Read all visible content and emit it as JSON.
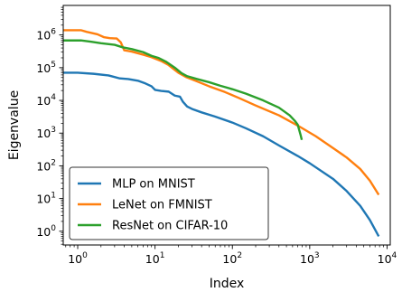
{
  "chart_data": {
    "type": "line",
    "title": "",
    "xlabel": "Index",
    "ylabel": "Eigenvalue",
    "xscale": "log",
    "yscale": "log",
    "xlim": [
      0.65,
      11000
    ],
    "ylim": [
      0.38,
      8000000
    ],
    "grid": false,
    "legend_position": "lower-left",
    "x_ticks": [
      {
        "value": 1,
        "label": "10",
        "exp": "0"
      },
      {
        "value": 10,
        "label": "10",
        "exp": "1"
      },
      {
        "value": 100,
        "label": "10",
        "exp": "2"
      },
      {
        "value": 1000,
        "label": "10",
        "exp": "3"
      },
      {
        "value": 10000,
        "label": "10",
        "exp": "4"
      }
    ],
    "y_ticks": [
      {
        "value": 1,
        "label": "10",
        "exp": "0"
      },
      {
        "value": 10,
        "label": "10",
        "exp": "1"
      },
      {
        "value": 100,
        "label": "10",
        "exp": "2"
      },
      {
        "value": 1000,
        "label": "10",
        "exp": "3"
      },
      {
        "value": 10000,
        "label": "10",
        "exp": "4"
      },
      {
        "value": 100000,
        "label": "10",
        "exp": "5"
      },
      {
        "value": 1000000,
        "label": "10",
        "exp": "6"
      }
    ],
    "series": [
      {
        "name": "MLP on MNIST",
        "color": "#1f77b4",
        "points": [
          [
            0.65,
            70000
          ],
          [
            1,
            70000
          ],
          [
            1.6,
            65000
          ],
          [
            2.5,
            58000
          ],
          [
            3.5,
            47000
          ],
          [
            4.5,
            45000
          ],
          [
            6,
            40000
          ],
          [
            7.5,
            33000
          ],
          [
            9,
            27000
          ],
          [
            10,
            21000
          ],
          [
            12,
            19500
          ],
          [
            15,
            18500
          ],
          [
            18,
            14000
          ],
          [
            21,
            13000
          ],
          [
            23,
            9000
          ],
          [
            26,
            6500
          ],
          [
            30,
            5500
          ],
          [
            40,
            4300
          ],
          [
            60,
            3200
          ],
          [
            100,
            2100
          ],
          [
            150,
            1400
          ],
          [
            250,
            800
          ],
          [
            400,
            420
          ],
          [
            700,
            200
          ],
          [
            1000,
            120
          ],
          [
            2000,
            40
          ],
          [
            3000,
            17
          ],
          [
            4500,
            6
          ],
          [
            6000,
            2.2
          ],
          [
            7800,
            0.7
          ]
        ]
      },
      {
        "name": "LeNet on FMNIST",
        "color": "#ff7f0e",
        "points": [
          [
            0.65,
            1400000
          ],
          [
            1.1,
            1400000
          ],
          [
            1.3,
            1250000
          ],
          [
            1.8,
            1050000
          ],
          [
            2.2,
            850000
          ],
          [
            2.6,
            800000
          ],
          [
            3.2,
            780000
          ],
          [
            3.6,
            600000
          ],
          [
            4,
            340000
          ],
          [
            5,
            310000
          ],
          [
            7,
            250000
          ],
          [
            9,
            210000
          ],
          [
            12,
            160000
          ],
          [
            15,
            120000
          ],
          [
            20,
            70000
          ],
          [
            25,
            52000
          ],
          [
            35,
            38000
          ],
          [
            50,
            27000
          ],
          [
            80,
            18000
          ],
          [
            120,
            12000
          ],
          [
            200,
            7000
          ],
          [
            400,
            3500
          ],
          [
            700,
            1700
          ],
          [
            1200,
            800
          ],
          [
            2000,
            350
          ],
          [
            3000,
            180
          ],
          [
            4500,
            80
          ],
          [
            6000,
            35
          ],
          [
            7800,
            13
          ]
        ]
      },
      {
        "name": "ResNet on CIFAR-10",
        "color": "#2ca02c",
        "points": [
          [
            0.65,
            680000
          ],
          [
            1.1,
            680000
          ],
          [
            1.5,
            620000
          ],
          [
            2,
            560000
          ],
          [
            3,
            500000
          ],
          [
            3.8,
            420000
          ],
          [
            5,
            370000
          ],
          [
            7,
            300000
          ],
          [
            9,
            230000
          ],
          [
            11,
            200000
          ],
          [
            14,
            150000
          ],
          [
            18,
            100000
          ],
          [
            22,
            68000
          ],
          [
            26,
            55000
          ],
          [
            35,
            45000
          ],
          [
            50,
            36000
          ],
          [
            70,
            28000
          ],
          [
            100,
            22000
          ],
          [
            150,
            16000
          ],
          [
            250,
            10000
          ],
          [
            400,
            6000
          ],
          [
            550,
            3500
          ],
          [
            650,
            2300
          ],
          [
            700,
            1800
          ],
          [
            760,
            900
          ],
          [
            790,
            620
          ]
        ]
      }
    ]
  }
}
